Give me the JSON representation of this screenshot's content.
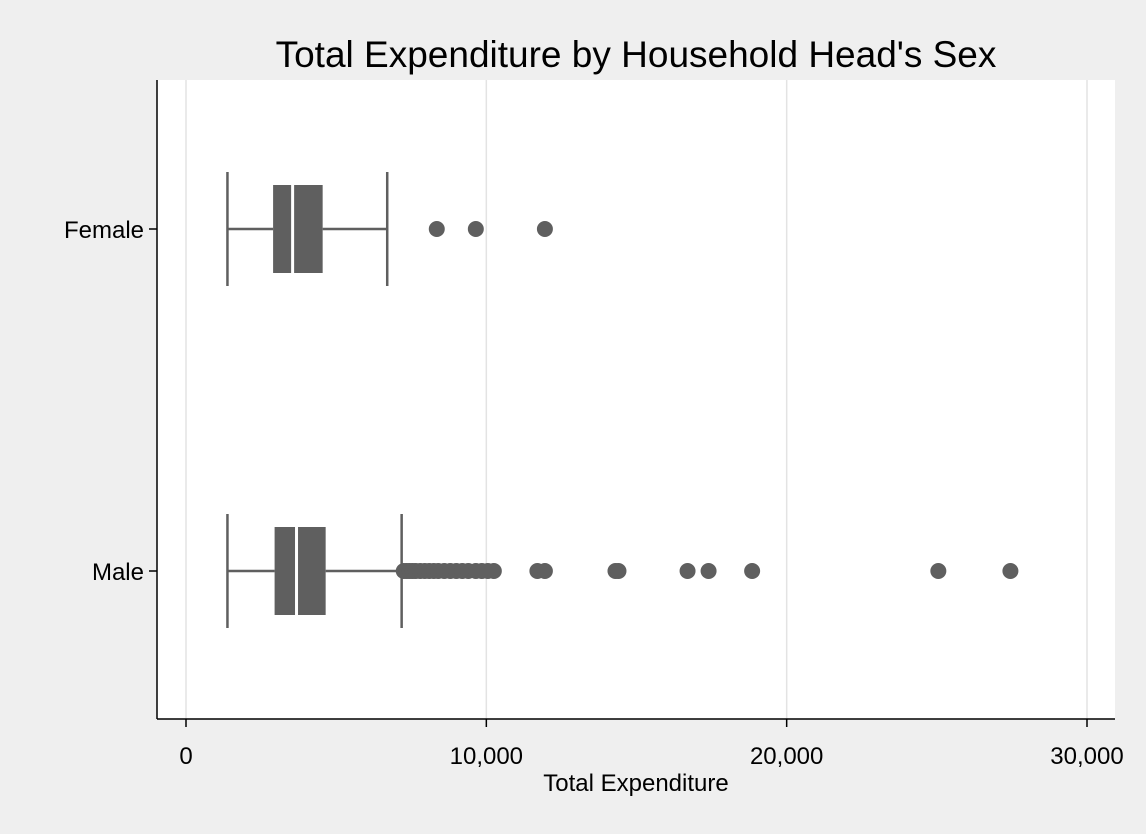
{
  "chart_data": {
    "type": "boxplot",
    "orientation": "horizontal",
    "title": "Total Expenditure by Household Head's Sex",
    "xlabel": "Total Expenditure",
    "ylabel": "",
    "xlim": [
      -1000,
      31000
    ],
    "x_ticks": [
      0,
      10000,
      20000,
      30000
    ],
    "x_tick_labels": [
      "0",
      "10,000",
      "20,000",
      "30,000"
    ],
    "grid": "vertical",
    "colors": {
      "box": "#5f5f5f",
      "median": "#ffffff",
      "grid": "#e3e3e3",
      "plot_background": "#ffffff",
      "page_background": "#efefef"
    },
    "groups": [
      {
        "name": "Female",
        "whisker_low": 1380,
        "q1": 2900,
        "median": 3550,
        "q3": 4550,
        "whisker_high": 6700,
        "outliers": [
          8350,
          9650,
          11950
        ]
      },
      {
        "name": "Male",
        "whisker_low": 1380,
        "q1": 2950,
        "median": 3680,
        "q3": 4650,
        "whisker_high": 7180,
        "outliers": [
          7250,
          7350,
          7450,
          7550,
          7650,
          7800,
          7950,
          8100,
          8250,
          8400,
          8600,
          8800,
          9000,
          9200,
          9400,
          9650,
          9850,
          10050,
          10250,
          11700,
          11950,
          14300,
          14400,
          16700,
          17400,
          18850,
          25050,
          27450
        ]
      }
    ]
  }
}
